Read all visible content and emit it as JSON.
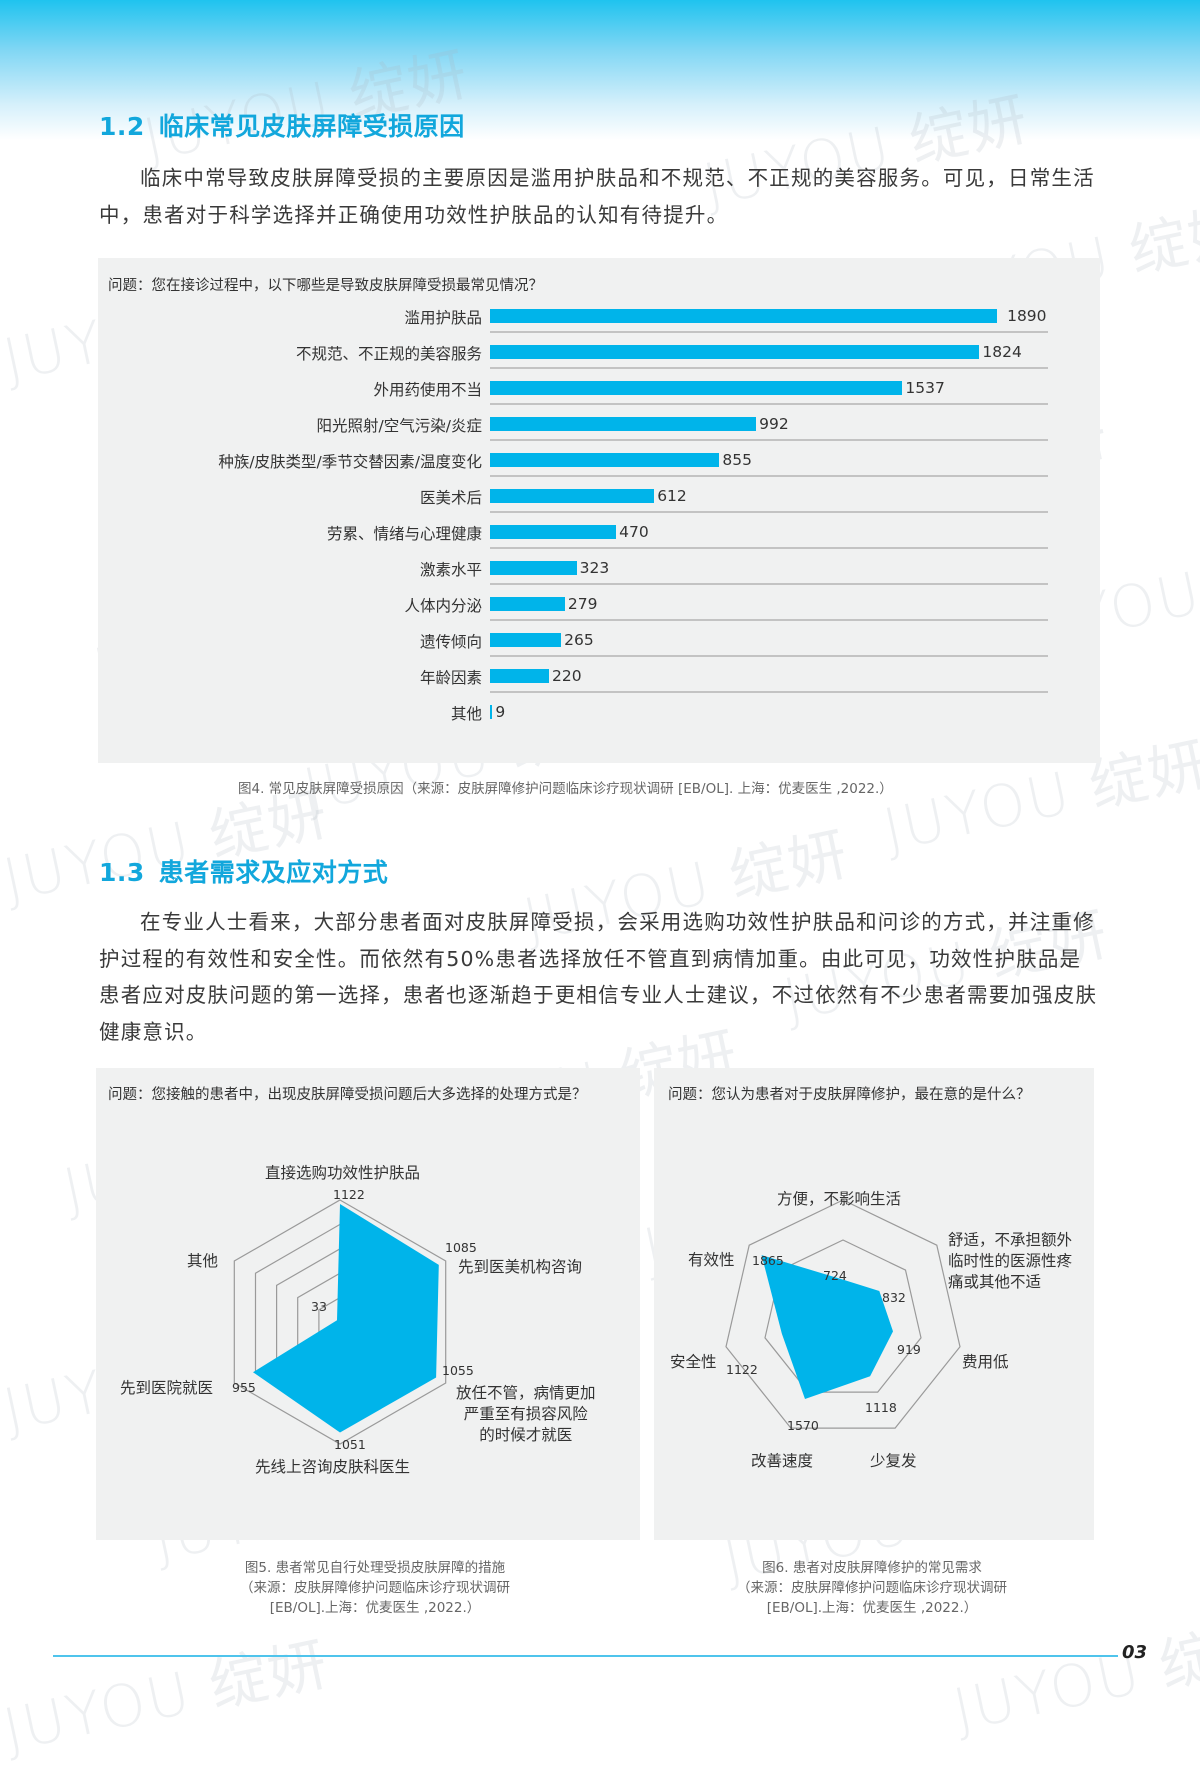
{
  "colors": {
    "accent": "#12a7dc",
    "bar": "#00b4ea",
    "panel_bg": "#f0f1f1",
    "grid": "#c3c3c3",
    "footer_line": "#4fc4ec"
  },
  "watermark": "JUYOU 绽妍",
  "section_1_2": {
    "number": "1.2",
    "title": "临床常见皮肤屏障受损原因",
    "paragraph": "临床中常导致皮肤屏障受损的主要原因是滥用护肤品和不规范、不正规的美容服务。可见，日常生活中，患者对于科学选择并正确使用功效性护肤品的认知有待提升。"
  },
  "figure4": {
    "question": "问题：您在接诊过程中，以下哪些是导致皮肤屏障受损最常见情况？",
    "caption": "图4. 常见皮肤屏障受损原因（来源：皮肤屏障修护问题临床诊疗现状调研 [EB/OL]. 上海：优麦医生 ,2022.）"
  },
  "section_1_3": {
    "number": "1.3",
    "title": "患者需求及应对方式",
    "paragraph": "在专业人士看来，大部分患者面对皮肤屏障受损，会采用选购功效性护肤品和问诊的方式，并注重修护过程的有效性和安全性。而依然有50%患者选择放任不管直到病情加重。由此可见，功效性护肤品是患者应对皮肤问题的第一选择，患者也逐渐趋于更相信专业人士建议，不过依然有不少患者需要加强皮肤健康意识。"
  },
  "figure5": {
    "question": "问题：您接触的患者中，出现皮肤屏障受损问题后大多选择的处理方式是？",
    "caption_lines": [
      "图5. 患者常见自行处理受损皮肤屏障的措施",
      "（来源：皮肤屏障修护问题临床诊疗现状调研",
      "[EB/OL].上海：优麦医生 ,2022.）"
    ]
  },
  "figure6": {
    "question": "问题：您认为患者对于皮肤屏障修护，最在意的是什么？",
    "caption_lines": [
      "图6. 患者对皮肤屏障修护的常见需求",
      "（来源：皮肤屏障修护问题临床诊疗现状调研",
      "[EB/OL].上海：优麦医生 ,2022.）"
    ]
  },
  "footer": {
    "page_number": "03"
  },
  "chart_data": [
    {
      "type": "bar",
      "orientation": "horizontal",
      "title": "问题：您在接诊过程中，以下哪些是导致皮肤屏障受损最常见情况？",
      "categories": [
        "滥用护肤品",
        "不规范、不正规的美容服务",
        "外用药使用不当",
        "阳光照射/空气污染/炎症",
        "种族/皮肤类型/季节交替因素/温度变化",
        "医美术后",
        "劳累、情绪与心理健康",
        "激素水平",
        "人体内分泌",
        "遗传倾向",
        "年龄因素",
        "其他"
      ],
      "values": [
        1890,
        1824,
        1537,
        992,
        855,
        612,
        470,
        323,
        279,
        265,
        220,
        9
      ],
      "xlabel": "",
      "ylabel": "",
      "data_labels": true,
      "grid": "horizontal separators",
      "legend": "none"
    },
    {
      "type": "radar",
      "title": "问题：您接触的患者中，出现皮肤屏障受损问题后大多选择的处理方式是？",
      "categories": [
        "直接选购功效性护肤品",
        "先到医美机构咨询",
        "放任不管，病情更加严重至有损容风险的时候才就医",
        "先线上咨询皮肤科医生",
        "先到医院就医",
        "其他"
      ],
      "values": [
        1122,
        1085,
        1055,
        1051,
        955,
        33
      ],
      "rings": 5,
      "legend": "none"
    },
    {
      "type": "radar",
      "title": "问题：您认为患者对于皮肤屏障修护，最在意的是什么？",
      "categories": [
        "方便，不影响生活",
        "舒适，不承担额外临时性的医源性疼痛或其他不适",
        "费用低",
        "少复发",
        "改善速度",
        "安全性",
        "有效性"
      ],
      "values": [
        724,
        832,
        919,
        1118,
        1570,
        1122,
        1865
      ],
      "rings": 3,
      "legend": "none"
    }
  ]
}
